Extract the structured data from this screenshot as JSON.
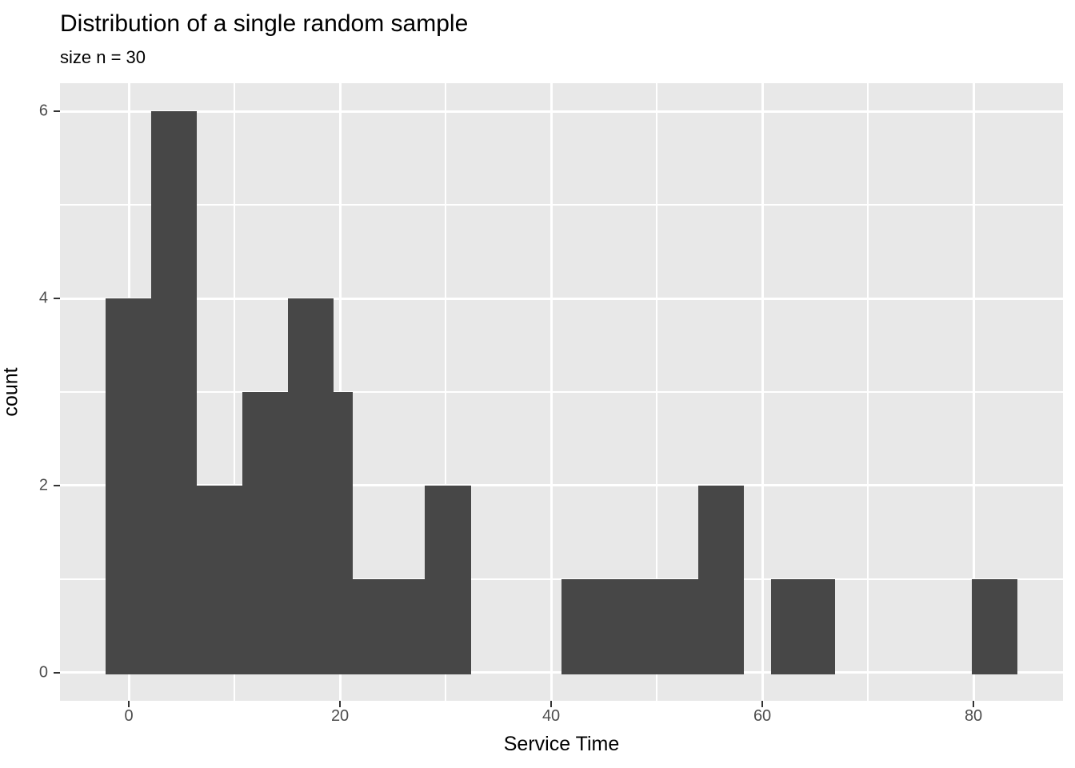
{
  "figure": {
    "title": "Distribution of a single random sample",
    "subtitle": "size n = 30",
    "x_axis_title": "Service Time",
    "y_axis_title": "count"
  },
  "chart_data": {
    "type": "bar",
    "subtype": "histogram",
    "title": "Distribution of a single random sample",
    "subtitle": "size n = 30",
    "xlabel": "Service Time",
    "ylabel": "count",
    "sample_size": 30,
    "approx_binwidth": 4.32,
    "xlim": [
      -6.52,
      88.48
    ],
    "ylim": [
      -0.3,
      6.3
    ],
    "x_ticks": [
      0,
      20,
      40,
      60,
      80
    ],
    "x_minor_gridlines": [
      10,
      30,
      50,
      70
    ],
    "y_ticks": [
      0,
      2,
      4,
      6
    ],
    "y_minor_gridlines": [
      1,
      3,
      5
    ],
    "grid": "on",
    "legend": "none",
    "bars": [
      {
        "x0": -2.2,
        "x1": 2.12,
        "count": 4
      },
      {
        "x0": 2.12,
        "x1": 6.44,
        "count": 6
      },
      {
        "x0": 6.44,
        "x1": 10.76,
        "count": 2
      },
      {
        "x0": 10.76,
        "x1": 15.08,
        "count": 3
      },
      {
        "x0": 15.08,
        "x1": 19.39,
        "count": 4
      },
      {
        "x0": 19.39,
        "x1": 21.21,
        "count": 3
      },
      {
        "x0": 21.21,
        "x1": 28.03,
        "count": 1
      },
      {
        "x0": 28.03,
        "x1": 32.42,
        "count": 2
      },
      {
        "x0": 40.98,
        "x1": 53.94,
        "count": 1
      },
      {
        "x0": 53.94,
        "x1": 58.26,
        "count": 2
      },
      {
        "x0": 60.83,
        "x1": 66.89,
        "count": 1
      },
      {
        "x0": 79.85,
        "x1": 84.17,
        "count": 1
      }
    ],
    "colors": {
      "bar": "#474747",
      "panel": "#E8E8E8",
      "gridline": "#FFFFFF",
      "tick_label": "#4D4D4D",
      "tick_mark": "#333333",
      "text": "#000000",
      "background": "#FFFFFF"
    }
  }
}
